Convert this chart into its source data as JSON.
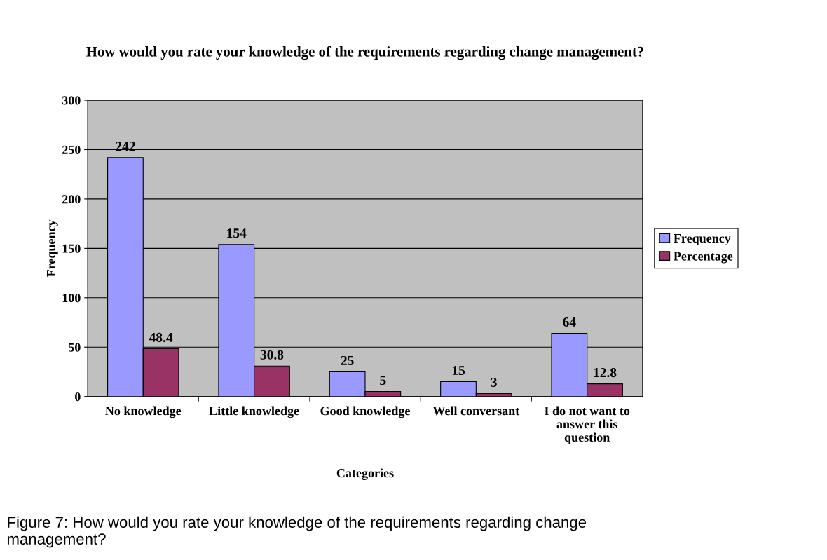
{
  "chart_data": {
    "type": "bar",
    "title": "How would you rate your knowledge of the requirements regarding change management?",
    "xlabel": "Categories",
    "ylabel": "Frequency",
    "categories": [
      "No knowledge",
      "Little knowledge",
      "Good knowledge",
      "Well conversant",
      "I do not want to answer this question"
    ],
    "series": [
      {
        "name": "Frequency",
        "color": "#9999ff",
        "values": [
          242,
          154,
          25,
          15,
          64
        ]
      },
      {
        "name": "Percentage",
        "color": "#993366",
        "values": [
          48.4,
          30.8,
          5,
          3,
          12.8
        ]
      }
    ],
    "ylim": [
      0,
      300
    ],
    "yticks": [
      0,
      50,
      100,
      150,
      200,
      250,
      300
    ],
    "grid": "y",
    "legend": "right",
    "data_labels": true,
    "annotations": [
      "Figure 7: How would you rate your knowledge of the requirements regarding change management?"
    ]
  }
}
